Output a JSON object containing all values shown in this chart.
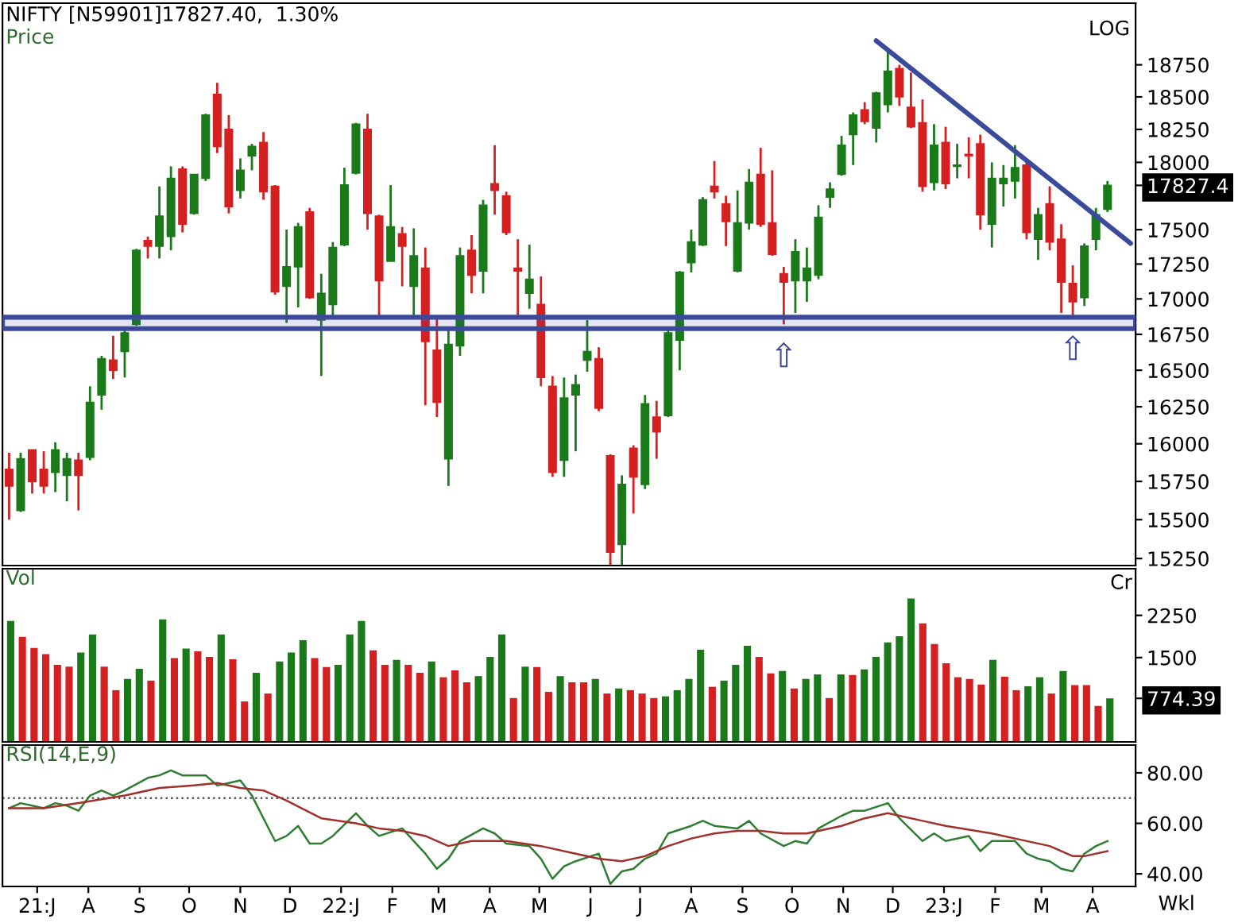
{
  "chart_data": [
    {
      "type": "candlestick",
      "title": "NIFTY [N59901]17827.40,  1.30%",
      "subtitle": "Price",
      "log": true,
      "tick_labels": "y",
      "annotations": [
        "LOG",
        {
          "text": "⇧",
          "x": "2022-09-26",
          "y": 16820
        },
        {
          "text": "⇧",
          "x": "2023-03-20",
          "y": 16870
        }
      ],
      "xlim": [
        "2021-06-10",
        "2023-04-27"
      ],
      "ylim": [
        15205,
        19240
      ],
      "yticks": [
        15250,
        15500,
        15750,
        16000,
        16250,
        16500,
        16750,
        17000,
        17250,
        17500,
        18000,
        18250,
        18500,
        18750,
        {
          "value": 17827.4,
          "label": "17827.4"
        }
      ],
      "bands": [
        {
          "axis": "y",
          "from": 16790,
          "to": 16870,
          "color": "#3c4a9c"
        }
      ],
      "series": [
        {
          "type": "line",
          "x": [
            "2022-11-21",
            "2023-04-24"
          ],
          "values": [
            18940,
            17400
          ],
          "color": "#3c4a9c"
        }
      ],
      "x": [
        "2021-06-14",
        "2021-06-21",
        "2021-06-28",
        "2021-07-05",
        "2021-07-12",
        "2021-07-19",
        "2021-07-26",
        "2021-08-02",
        "2021-08-09",
        "2021-08-16",
        "2021-08-23",
        "2021-08-30",
        "2021-09-06",
        "2021-09-13",
        "2021-09-20",
        "2021-09-27",
        "2021-10-04",
        "2021-10-11",
        "2021-10-18",
        "2021-10-25",
        "2021-11-01",
        "2021-11-08",
        "2021-11-15",
        "2021-11-22",
        "2021-11-29",
        "2021-12-06",
        "2021-12-13",
        "2021-12-20",
        "2021-12-27",
        "2022-01-03",
        "2022-01-10",
        "2022-01-17",
        "2022-01-24",
        "2022-01-31",
        "2022-02-07",
        "2022-02-14",
        "2022-02-21",
        "2022-02-28",
        "2022-03-07",
        "2022-03-14",
        "2022-03-21",
        "2022-03-28",
        "2022-04-04",
        "2022-04-11",
        "2022-04-18",
        "2022-04-25",
        "2022-05-02",
        "2022-05-09",
        "2022-05-16",
        "2022-05-23",
        "2022-05-30",
        "2022-06-06",
        "2022-06-13",
        "2022-06-20",
        "2022-06-27",
        "2022-07-04",
        "2022-07-11",
        "2022-07-18",
        "2022-07-25",
        "2022-08-01",
        "2022-08-08",
        "2022-08-15",
        "2022-08-22",
        "2022-08-29",
        "2022-09-05",
        "2022-09-12",
        "2022-09-19",
        "2022-09-26",
        "2022-10-03",
        "2022-10-10",
        "2022-10-17",
        "2022-10-24",
        "2022-10-31",
        "2022-11-07",
        "2022-11-14",
        "2022-11-21",
        "2022-11-28",
        "2022-12-05",
        "2022-12-12",
        "2022-12-19",
        "2022-12-26",
        "2023-01-02",
        "2023-01-09",
        "2023-01-16",
        "2023-01-23",
        "2023-01-30",
        "2023-02-06",
        "2023-02-13",
        "2023-02-20",
        "2023-02-27",
        "2023-03-06",
        "2023-03-13",
        "2023-03-20",
        "2023-03-27",
        "2023-04-03",
        "2023-04-10"
      ],
      "ohlc": [
        [
          15830,
          15940,
          15500,
          15720
        ],
        [
          15560,
          15940,
          15550,
          15900
        ],
        [
          15960,
          15960,
          15670,
          15750
        ],
        [
          15830,
          15950,
          15670,
          15720
        ],
        [
          15810,
          16010,
          15680,
          15960
        ],
        [
          15790,
          15940,
          15620,
          15900
        ],
        [
          15890,
          15940,
          15560,
          15790
        ],
        [
          15910,
          16390,
          15890,
          16280
        ],
        [
          16330,
          16600,
          16230,
          16580
        ],
        [
          16570,
          16740,
          16440,
          16500
        ],
        [
          16630,
          16780,
          16450,
          16760
        ],
        [
          16820,
          17360,
          16810,
          17350
        ],
        [
          17420,
          17450,
          17290,
          17380
        ],
        [
          17380,
          17820,
          17290,
          17600
        ],
        [
          17450,
          17970,
          17350,
          17880
        ],
        [
          17950,
          17970,
          17480,
          17540
        ],
        [
          17620,
          17910,
          17610,
          17910
        ],
        [
          17880,
          18370,
          17860,
          18360
        ],
        [
          18520,
          18610,
          18070,
          18120
        ],
        [
          18250,
          18360,
          17620,
          17670
        ],
        [
          17790,
          18030,
          17730,
          17940
        ],
        [
          18050,
          18140,
          17940,
          18120
        ],
        [
          18150,
          18230,
          17720,
          17780
        ],
        [
          17820,
          17830,
          17030,
          17050
        ],
        [
          17090,
          17500,
          16830,
          17230
        ],
        [
          17230,
          17550,
          16940,
          17520
        ],
        [
          17630,
          17660,
          17000,
          17010
        ],
        [
          16850,
          17180,
          16460,
          17040
        ],
        [
          16960,
          17410,
          16870,
          17370
        ],
        [
          17390,
          17960,
          17380,
          17830
        ],
        [
          17920,
          18300,
          17910,
          18290
        ],
        [
          18250,
          18370,
          17500,
          17620
        ],
        [
          17600,
          17610,
          16870,
          17130
        ],
        [
          17270,
          17830,
          17270,
          17520
        ],
        [
          17470,
          17520,
          17090,
          17380
        ],
        [
          17090,
          17510,
          16860,
          17310
        ],
        [
          17220,
          17370,
          16260,
          16700
        ],
        [
          16640,
          16860,
          16180,
          16280
        ],
        [
          15900,
          16800,
          15720,
          16680
        ],
        [
          16670,
          17370,
          16600,
          17310
        ],
        [
          17350,
          17460,
          17040,
          17170
        ],
        [
          17200,
          17720,
          17040,
          17680
        ],
        [
          17840,
          18130,
          17610,
          17790
        ],
        [
          17750,
          17780,
          17460,
          17480
        ],
        [
          17220,
          17430,
          16870,
          17200
        ],
        [
          17040,
          17390,
          16930,
          17140
        ],
        [
          16960,
          17160,
          16390,
          16450
        ],
        [
          16390,
          16460,
          15780,
          15810
        ],
        [
          15890,
          16450,
          15780,
          16310
        ],
        [
          16330,
          16470,
          15950,
          16400
        ],
        [
          16570,
          16850,
          16490,
          16630
        ],
        [
          16580,
          16660,
          16220,
          16240
        ],
        [
          15920,
          15930,
          15190,
          15290
        ],
        [
          15340,
          15790,
          15190,
          15730
        ],
        [
          15970,
          15990,
          15540,
          15780
        ],
        [
          15730,
          16330,
          15700,
          16270
        ],
        [
          16180,
          16290,
          15900,
          16080
        ],
        [
          16190,
          16780,
          16180,
          16760
        ],
        [
          16710,
          17200,
          16500,
          17190
        ],
        [
          17260,
          17500,
          17190,
          17410
        ],
        [
          17390,
          17740,
          17380,
          17720
        ],
        [
          17820,
          18010,
          17730,
          17780
        ],
        [
          17690,
          17750,
          17380,
          17560
        ],
        [
          17200,
          17790,
          17190,
          17550
        ],
        [
          17550,
          17950,
          17500,
          17850
        ],
        [
          17910,
          18110,
          17520,
          17540
        ],
        [
          17550,
          17940,
          17310,
          17320
        ],
        [
          17180,
          17230,
          16820,
          17120
        ],
        [
          17130,
          17430,
          16900,
          17340
        ],
        [
          17130,
          17370,
          16980,
          17220
        ],
        [
          17170,
          17680,
          17140,
          17590
        ],
        [
          17740,
          17850,
          17660,
          17800
        ],
        [
          17910,
          18200,
          17900,
          18130
        ],
        [
          18210,
          18380,
          17980,
          18360
        ],
        [
          18400,
          18460,
          18290,
          18310
        ],
        [
          18260,
          18540,
          18150,
          18530
        ],
        [
          18440,
          18870,
          18380,
          18700
        ],
        [
          18720,
          18750,
          18430,
          18500
        ],
        [
          18420,
          18690,
          18260,
          18270
        ],
        [
          18300,
          18480,
          17780,
          17820
        ],
        [
          17850,
          18290,
          17790,
          18130
        ],
        [
          18150,
          18270,
          17800,
          17840
        ],
        [
          17970,
          18140,
          17880,
          17980
        ],
        [
          18060,
          18190,
          17880,
          18050
        ],
        [
          18140,
          18210,
          17500,
          17610
        ],
        [
          17540,
          18000,
          17370,
          17880
        ],
        [
          17840,
          17980,
          17670,
          17880
        ],
        [
          17860,
          18130,
          17730,
          17960
        ],
        [
          17980,
          18020,
          17430,
          17480
        ],
        [
          17430,
          17660,
          17280,
          17610
        ],
        [
          17690,
          17820,
          17350,
          17410
        ],
        [
          17430,
          17540,
          16900,
          17120
        ],
        [
          17110,
          17240,
          16870,
          16980
        ],
        [
          17010,
          17400,
          16950,
          17380
        ],
        [
          17430,
          17660,
          17350,
          17610
        ],
        [
          17650,
          17860,
          17630,
          17827.4
        ]
      ],
      "colors": [
        "#d42020",
        "#1a7a1a",
        "#d42020",
        "#d42020",
        "#1a7a1a",
        "#1a7a1a",
        "#d42020",
        "#1a7a1a",
        "#1a7a1a",
        "#d42020",
        "#1a7a1a",
        "#1a7a1a",
        "#d42020",
        "#1a7a1a",
        "#1a7a1a",
        "#d42020",
        "#1a7a1a",
        "#1a7a1a",
        "#d42020",
        "#d42020",
        "#1a7a1a",
        "#1a7a1a",
        "#d42020",
        "#d42020",
        "#1a7a1a",
        "#1a7a1a",
        "#d42020",
        "#1a7a1a",
        "#1a7a1a",
        "#1a7a1a",
        "#1a7a1a",
        "#d42020",
        "#d42020",
        "#1a7a1a",
        "#d42020",
        "#1a7a1a",
        "#d42020",
        "#d42020",
        "#1a7a1a",
        "#1a7a1a",
        "#d42020",
        "#1a7a1a",
        "#d42020",
        "#d42020",
        "#d42020",
        "#1a7a1a",
        "#d42020",
        "#d42020",
        "#1a7a1a",
        "#1a7a1a",
        "#1a7a1a",
        "#d42020",
        "#d42020",
        "#1a7a1a",
        "#d42020",
        "#1a7a1a",
        "#d42020",
        "#1a7a1a",
        "#1a7a1a",
        "#1a7a1a",
        "#1a7a1a",
        "#d42020",
        "#d42020",
        "#1a7a1a",
        "#1a7a1a",
        "#d42020",
        "#d42020",
        "#d42020",
        "#1a7a1a",
        "#1a7a1a",
        "#1a7a1a",
        "#1a7a1a",
        "#1a7a1a",
        "#1a7a1a",
        "#d42020",
        "#1a7a1a",
        "#1a7a1a",
        "#d42020",
        "#d42020",
        "#d42020",
        "#1a7a1a",
        "#d42020",
        "#1a7a1a",
        "#d42020",
        "#d42020",
        "#1a7a1a",
        "#1a7a1a",
        "#1a7a1a",
        "#d42020",
        "#1a7a1a",
        "#d42020",
        "#d42020",
        "#d42020",
        "#1a7a1a",
        "#1a7a1a",
        "#1a7a1a"
      ]
    },
    {
      "type": "bar",
      "title": "Vol",
      "ylabel": "Cr",
      "tick_labels": "y",
      "ylim": [
        0,
        3080
      ],
      "yticks": [
        1500,
        2250,
        {
          "value": 774.39,
          "label": "774.39"
        }
      ],
      "categories": [
        null,
        null,
        null,
        null,
        null,
        null,
        null,
        null,
        null,
        null,
        null,
        null,
        null,
        null,
        null,
        null,
        null,
        null,
        null,
        null,
        null,
        null,
        null,
        null,
        null,
        null,
        null,
        null,
        null,
        null,
        null,
        null,
        null,
        null,
        null,
        null,
        null,
        null,
        null,
        null,
        null,
        null,
        null,
        null,
        null,
        null,
        null,
        null,
        null,
        null,
        null,
        null,
        null,
        null,
        null,
        null,
        null,
        null,
        null,
        null,
        null,
        null,
        null,
        null,
        null,
        null,
        null,
        null,
        null,
        null,
        null,
        null,
        null,
        null,
        null,
        null,
        null,
        null,
        null,
        null,
        null,
        null,
        null,
        null,
        null,
        null,
        null,
        null,
        null,
        null,
        null,
        null,
        null,
        null,
        null
      ],
      "values": [
        2150,
        1870,
        1670,
        1560,
        1370,
        1340,
        1590,
        1910,
        1340,
        920,
        1120,
        1300,
        1090,
        2180,
        1490,
        1660,
        1610,
        1510,
        1910,
        1470,
        720,
        1230,
        860,
        1430,
        1590,
        1810,
        1490,
        1330,
        1370,
        1910,
        2150,
        1630,
        1370,
        1460,
        1370,
        1230,
        1430,
        1150,
        1270,
        1060,
        1170,
        1510,
        1910,
        780,
        1340,
        1330,
        890,
        1170,
        1060,
        1060,
        1120,
        860,
        950,
        920,
        860,
        780,
        810,
        920,
        1120,
        1640,
        980,
        1090,
        1370,
        1710,
        1510,
        1220,
        1260,
        950,
        1120,
        1200,
        780,
        1200,
        1190,
        1290,
        1510,
        1770,
        1880,
        2550,
        2110,
        1740,
        1400,
        1150,
        1120,
        1020,
        1460,
        1160,
        920,
        990,
        1150,
        860,
        1260,
        1010,
        1010,
        640,
        774.39
      ],
      "colors": [
        "#1a7a1a",
        "#d42020",
        "#d42020",
        "#d42020",
        "#d42020",
        "#d42020",
        "#1a7a1a",
        "#1a7a1a",
        "#d42020",
        "#d42020",
        "#1a7a1a",
        "#1a7a1a",
        "#d42020",
        "#1a7a1a",
        "#d42020",
        "#1a7a1a",
        "#d42020",
        "#d42020",
        "#1a7a1a",
        "#d42020",
        "#d42020",
        "#1a7a1a",
        "#d42020",
        "#1a7a1a",
        "#1a7a1a",
        "#1a7a1a",
        "#d42020",
        "#d42020",
        "#1a7a1a",
        "#1a7a1a",
        "#1a7a1a",
        "#d42020",
        "#d42020",
        "#1a7a1a",
        "#d42020",
        "#d42020",
        "#1a7a1a",
        "#d42020",
        "#d42020",
        "#d42020",
        "#1a7a1a",
        "#1a7a1a",
        "#1a7a1a",
        "#d42020",
        "#1a7a1a",
        "#d42020",
        "#d42020",
        "#1a7a1a",
        "#d42020",
        "#d42020",
        "#1a7a1a",
        "#d42020",
        "#1a7a1a",
        "#d42020",
        "#d42020",
        "#d42020",
        "#1a7a1a",
        "#1a7a1a",
        "#1a7a1a",
        "#1a7a1a",
        "#d42020",
        "#1a7a1a",
        "#1a7a1a",
        "#1a7a1a",
        "#d42020",
        "#d42020",
        "#1a7a1a",
        "#d42020",
        "#1a7a1a",
        "#1a7a1a",
        "#d42020",
        "#1a7a1a",
        "#d42020",
        "#1a7a1a",
        "#1a7a1a",
        "#1a7a1a",
        "#1a7a1a",
        "#1a7a1a",
        "#d42020",
        "#d42020",
        "#d42020",
        "#d42020",
        "#d42020",
        "#d42020",
        "#1a7a1a",
        "#d42020",
        "#d42020",
        "#1a7a1a",
        "#1a7a1a",
        "#d42020",
        "#1a7a1a",
        "#d42020",
        "#d42020",
        "#d42020",
        "#1a7a1a"
      ]
    },
    {
      "type": "line",
      "title": "RSI(14,E,9)",
      "xlabel": "Wkl",
      "xlim": [
        "2021-06-10",
        "2023-04-27"
      ],
      "ylim": [
        35,
        91
      ],
      "yticks": [
        {
          "value": 40,
          "label": "40.00"
        },
        {
          "value": 60,
          "label": "60.00"
        },
        {
          "value": 80,
          "label": "80.00"
        }
      ],
      "xticks": [
        {
          "value": "2021-07-01",
          "label": "21:J"
        },
        {
          "value": "2021-08-01",
          "label": "A"
        },
        {
          "value": "2021-09-01",
          "label": "S"
        },
        {
          "value": "2021-10-01",
          "label": "O"
        },
        {
          "value": "2021-11-01",
          "label": "N"
        },
        {
          "value": "2021-12-01",
          "label": "D"
        },
        {
          "value": "2022-01-01",
          "label": "22:J"
        },
        {
          "value": "2022-02-01",
          "label": "F"
        },
        {
          "value": "2022-03-01",
          "label": "M"
        },
        {
          "value": "2022-04-01",
          "label": "A"
        },
        {
          "value": "2022-05-01",
          "label": "M"
        },
        {
          "value": "2022-06-01",
          "label": "J"
        },
        {
          "value": "2022-07-01",
          "label": "J"
        },
        {
          "value": "2022-08-01",
          "label": "A"
        },
        {
          "value": "2022-09-01",
          "label": "S"
        },
        {
          "value": "2022-10-01",
          "label": "O"
        },
        {
          "value": "2022-11-01",
          "label": "N"
        },
        {
          "value": "2022-12-01",
          "label": "D"
        },
        {
          "value": "2023-01-01",
          "label": "23:J"
        },
        {
          "value": "2023-02-01",
          "label": "F"
        },
        {
          "value": "2023-03-01",
          "label": "M"
        },
        {
          "value": "2023-04-01",
          "label": "A"
        }
      ],
      "ref_lines": [
        {
          "axis": "y",
          "value": 70,
          "color": "#555555",
          "line_style": "dotted"
        }
      ],
      "series": [
        {
          "color": "#2e7d32",
          "x": [
            "2021-06-14",
            "2021-06-21",
            "2021-06-28",
            "2021-07-05",
            "2021-07-12",
            "2021-07-19",
            "2021-07-26",
            "2021-08-02",
            "2021-08-09",
            "2021-08-16",
            "2021-08-23",
            "2021-09-06",
            "2021-09-13",
            "2021-09-20",
            "2021-09-27",
            "2021-10-04",
            "2021-10-11",
            "2021-10-18",
            "2021-10-25",
            "2021-11-01",
            "2021-11-08",
            "2021-11-22",
            "2021-11-29",
            "2021-12-06",
            "2021-12-13",
            "2021-12-20",
            "2021-12-27",
            "2022-01-10",
            "2022-01-17",
            "2022-01-24",
            "2022-02-07",
            "2022-02-14",
            "2022-02-21",
            "2022-02-28",
            "2022-03-07",
            "2022-03-14",
            "2022-03-28",
            "2022-04-04",
            "2022-04-11",
            "2022-04-25",
            "2022-05-02",
            "2022-05-09",
            "2022-05-16",
            "2022-05-23",
            "2022-06-06",
            "2022-06-13",
            "2022-06-20",
            "2022-06-27",
            "2022-07-04",
            "2022-07-11",
            "2022-07-18",
            "2022-08-01",
            "2022-08-08",
            "2022-08-15",
            "2022-08-29",
            "2022-09-05",
            "2022-09-12",
            "2022-09-26",
            "2022-10-03",
            "2022-10-10",
            "2022-10-17",
            "2022-10-31",
            "2022-11-07",
            "2022-11-14",
            "2022-11-28",
            "2022-12-05",
            "2022-12-19",
            "2022-12-26",
            "2023-01-02",
            "2023-01-16",
            "2023-01-23",
            "2023-01-30",
            "2023-02-13",
            "2023-02-20",
            "2023-02-27",
            "2023-03-06",
            "2023-03-13",
            "2023-03-20",
            "2023-03-27",
            "2023-04-03",
            "2023-04-10"
          ],
          "values": [
            66,
            68,
            67,
            66,
            68,
            67,
            65,
            71,
            73,
            71,
            73,
            78,
            79,
            81,
            79,
            79,
            79,
            75,
            76,
            77,
            71,
            53,
            55,
            59,
            52,
            52,
            55,
            64,
            59,
            55,
            58,
            53,
            48,
            42,
            46,
            53,
            58,
            56,
            52,
            51,
            46,
            38,
            43,
            45,
            48,
            36,
            41,
            42,
            46,
            48,
            56,
            59,
            61,
            59,
            58,
            61,
            56,
            51,
            53,
            52,
            58,
            63,
            65,
            65,
            68,
            62,
            53,
            56,
            53,
            55,
            49,
            53,
            53,
            48,
            46,
            45,
            42,
            41,
            48,
            51,
            53
          ]
        },
        {
          "color": "#a0302a",
          "x": [
            "2021-06-14",
            "2021-07-05",
            "2021-07-26",
            "2021-08-23",
            "2021-09-13",
            "2021-10-04",
            "2021-10-18",
            "2021-11-01",
            "2021-11-15",
            "2021-11-29",
            "2021-12-20",
            "2022-01-10",
            "2022-01-24",
            "2022-02-07",
            "2022-02-21",
            "2022-03-07",
            "2022-03-21",
            "2022-04-11",
            "2022-05-02",
            "2022-05-23",
            "2022-06-06",
            "2022-06-20",
            "2022-07-04",
            "2022-07-18",
            "2022-08-01",
            "2022-08-15",
            "2022-08-29",
            "2022-09-12",
            "2022-09-26",
            "2022-10-10",
            "2022-10-31",
            "2022-11-14",
            "2022-11-28",
            "2022-12-19",
            "2023-01-02",
            "2023-01-30",
            "2023-02-13",
            "2023-03-06",
            "2023-03-20",
            "2023-03-27",
            "2023-04-10"
          ],
          "values": [
            66,
            66,
            68,
            71,
            74,
            75,
            76,
            74,
            73,
            69,
            62,
            60,
            58,
            57,
            55,
            51,
            53,
            53,
            51,
            48,
            46,
            45,
            47,
            51,
            54,
            56,
            57,
            57,
            56,
            56,
            59,
            62,
            64,
            61,
            59,
            56,
            54,
            51,
            47,
            47,
            49
          ]
        }
      ]
    }
  ]
}
